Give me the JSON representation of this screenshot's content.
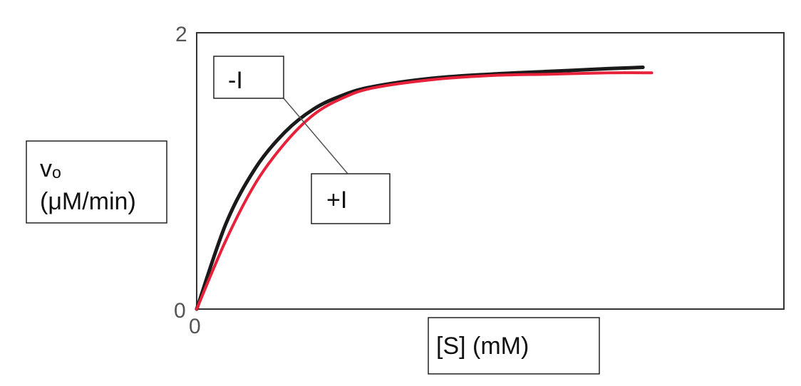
{
  "chart_data": {
    "type": "line",
    "title": "",
    "xlabel": "[S] (mM)",
    "ylabel_line1": "vₒ",
    "ylabel_line2": "(μM/min)",
    "ylim": [
      0,
      2
    ],
    "xlim": [
      0,
      10
    ],
    "x_ticks": [
      "0"
    ],
    "y_ticks": [
      "0",
      "2"
    ],
    "grid": false,
    "series": [
      {
        "name": "-I",
        "color": "#1a1a1a",
        "x": [
          0,
          0.5,
          1,
          1.5,
          2,
          2.5,
          3,
          4,
          5,
          6,
          7,
          7.6
        ],
        "y": [
          0,
          0.62,
          1.02,
          1.28,
          1.45,
          1.55,
          1.61,
          1.67,
          1.7,
          1.72,
          1.74,
          1.75
        ]
      },
      {
        "name": "+I",
        "color": "#e8213a",
        "x": [
          0,
          0.5,
          1,
          1.5,
          2,
          2.5,
          3,
          4,
          5,
          6,
          7,
          7.75
        ],
        "y": [
          0,
          0.5,
          0.91,
          1.2,
          1.41,
          1.53,
          1.6,
          1.66,
          1.69,
          1.7,
          1.71,
          1.71
        ]
      }
    ]
  }
}
